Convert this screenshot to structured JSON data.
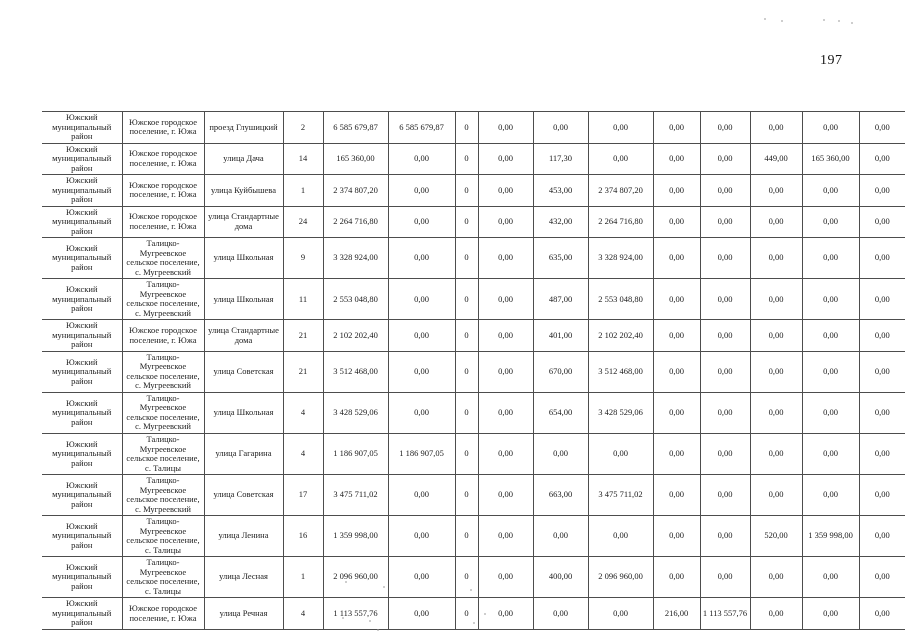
{
  "page": {
    "number": "197"
  },
  "colors": {
    "paper": "#ffffff",
    "table_border": "#4d4d4d",
    "text": "#1c1c1c"
  },
  "table": {
    "rows": [
      {
        "district": "Южский муниципальный район",
        "settlement": "Южское городское поселение, г. Южа",
        "street": "проезд Глушицкий",
        "house": "2",
        "values": [
          "6 585 679,87",
          "6 585 679,87",
          "0",
          "0,00",
          "0,00",
          "0,00",
          "0,00",
          "0,00",
          "0,00",
          "0,00",
          "0,00"
        ]
      },
      {
        "district": "Южский муниципальный район",
        "settlement": "Южское городское поселение, г. Южа",
        "street": "улица Дача",
        "house": "14",
        "values": [
          "165 360,00",
          "0,00",
          "0",
          "0,00",
          "117,30",
          "0,00",
          "0,00",
          "0,00",
          "449,00",
          "165 360,00",
          "0,00"
        ]
      },
      {
        "district": "Южский муниципальный район",
        "settlement": "Южское городское поселение, г. Южа",
        "street": "улица Куйбышева",
        "house": "1",
        "values": [
          "2 374 807,20",
          "0,00",
          "0",
          "0,00",
          "453,00",
          "2 374 807,20",
          "0,00",
          "0,00",
          "0,00",
          "0,00",
          "0,00"
        ]
      },
      {
        "district": "Южский муниципальный район",
        "settlement": "Южское городское поселение, г. Южа",
        "street": "улица Стандартные дома",
        "house": "24",
        "values": [
          "2 264 716,80",
          "0,00",
          "0",
          "0,00",
          "432,00",
          "2 264 716,80",
          "0,00",
          "0,00",
          "0,00",
          "0,00",
          "0,00"
        ]
      },
      {
        "district": "Южский муниципальный район",
        "settlement": "Талицко-Мугреевское сельское поселение, с. Мугреевский",
        "street": "улица Школьная",
        "house": "9",
        "values": [
          "3 328 924,00",
          "0,00",
          "0",
          "0,00",
          "635,00",
          "3 328 924,00",
          "0,00",
          "0,00",
          "0,00",
          "0,00",
          "0,00"
        ]
      },
      {
        "district": "Южский муниципальный район",
        "settlement": "Талицко-Мугреевское сельское поселение, с. Мугреевский",
        "street": "улица Школьная",
        "house": "11",
        "values": [
          "2 553 048,80",
          "0,00",
          "0",
          "0,00",
          "487,00",
          "2 553 048,80",
          "0,00",
          "0,00",
          "0,00",
          "0,00",
          "0,00"
        ]
      },
      {
        "district": "Южский муниципальный район",
        "settlement": "Южское городское поселение, г. Южа",
        "street": "улица Стандартные дома",
        "house": "21",
        "values": [
          "2 102 202,40",
          "0,00",
          "0",
          "0,00",
          "401,00",
          "2 102 202,40",
          "0,00",
          "0,00",
          "0,00",
          "0,00",
          "0,00"
        ]
      },
      {
        "district": "Южский муниципальный район",
        "settlement": "Талицко-Мугреевское сельское поселение, с. Мугреевский",
        "street": "улица Советская",
        "house": "21",
        "values": [
          "3 512 468,00",
          "0,00",
          "0",
          "0,00",
          "670,00",
          "3 512 468,00",
          "0,00",
          "0,00",
          "0,00",
          "0,00",
          "0,00"
        ]
      },
      {
        "district": "Южский муниципальный район",
        "settlement": "Талицко-Мугреевское сельское поселение, с. Мугреевский",
        "street": "улица Школьная",
        "house": "4",
        "values": [
          "3 428 529,06",
          "0,00",
          "0",
          "0,00",
          "654,00",
          "3 428 529,06",
          "0,00",
          "0,00",
          "0,00",
          "0,00",
          "0,00"
        ]
      },
      {
        "district": "Южский муниципальный район",
        "settlement": "Талицко-Мугреевское сельское поселение, с. Талицы",
        "street": "улица Гагарина",
        "house": "4",
        "values": [
          "1 186 907,05",
          "1 186 907,05",
          "0",
          "0,00",
          "0,00",
          "0,00",
          "0,00",
          "0,00",
          "0,00",
          "0,00",
          "0,00"
        ]
      },
      {
        "district": "Южский муниципальный район",
        "settlement": "Талицко-Мугреевское сельское поселение, с. Мугреевский",
        "street": "улица Советская",
        "house": "17",
        "values": [
          "3 475 711,02",
          "0,00",
          "0",
          "0,00",
          "663,00",
          "3 475 711,02",
          "0,00",
          "0,00",
          "0,00",
          "0,00",
          "0,00"
        ]
      },
      {
        "district": "Южский муниципальный район",
        "settlement": "Талицко-Мугреевское сельское поселение, с. Талицы",
        "street": "улица Ленина",
        "house": "16",
        "values": [
          "1 359 998,00",
          "0,00",
          "0",
          "0,00",
          "0,00",
          "0,00",
          "0,00",
          "0,00",
          "520,00",
          "1 359 998,00",
          "0,00"
        ]
      },
      {
        "district": "Южский муниципальный район",
        "settlement": "Талицко-Мугреевское сельское поселение, с. Талицы",
        "street": "улица Лесная",
        "house": "1",
        "values": [
          "2 096 960,00",
          "0,00",
          "0",
          "0,00",
          "400,00",
          "2 096 960,00",
          "0,00",
          "0,00",
          "0,00",
          "0,00",
          "0,00"
        ]
      },
      {
        "district": "Южский муниципальный район",
        "settlement": "Южское городское поселение, г. Южа",
        "street": "улица Речная",
        "house": "4",
        "values": [
          "1 113 557,76",
          "0,00",
          "0",
          "0,00",
          "0,00",
          "0,00",
          "216,00",
          "1 113 557,76",
          "0,00",
          "0,00",
          "0,00"
        ]
      }
    ]
  }
}
